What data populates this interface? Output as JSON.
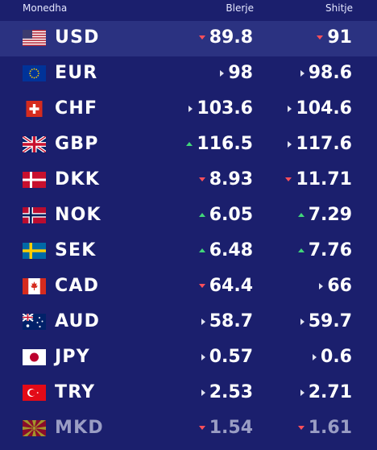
{
  "header": {
    "currency": "Monedha",
    "buy": "Blerje",
    "sell": "Shitje"
  },
  "colors": {
    "background": "#1b1f6d",
    "selected_row": "#2b3281",
    "down": "#ff4f5a",
    "up": "#41d67a"
  },
  "rows": [
    {
      "code": "USD",
      "flag": "us-flag-icon",
      "buy": "89.8",
      "buy_trend": "down",
      "sell": "91",
      "sell_trend": "down"
    },
    {
      "code": "EUR",
      "flag": "eu-flag-icon",
      "buy": "98",
      "buy_trend": "flat",
      "sell": "98.6",
      "sell_trend": "flat"
    },
    {
      "code": "CHF",
      "flag": "ch-flag-icon",
      "buy": "103.6",
      "buy_trend": "flat",
      "sell": "104.6",
      "sell_trend": "flat"
    },
    {
      "code": "GBP",
      "flag": "gb-flag-icon",
      "buy": "116.5",
      "buy_trend": "up",
      "sell": "117.6",
      "sell_trend": "flat"
    },
    {
      "code": "DKK",
      "flag": "dk-flag-icon",
      "buy": "8.93",
      "buy_trend": "down",
      "sell": "11.71",
      "sell_trend": "down"
    },
    {
      "code": "NOK",
      "flag": "no-flag-icon",
      "buy": "6.05",
      "buy_trend": "up",
      "sell": "7.29",
      "sell_trend": "up"
    },
    {
      "code": "SEK",
      "flag": "se-flag-icon",
      "buy": "6.48",
      "buy_trend": "up",
      "sell": "7.76",
      "sell_trend": "up"
    },
    {
      "code": "CAD",
      "flag": "ca-flag-icon",
      "buy": "64.4",
      "buy_trend": "down",
      "sell": "66",
      "sell_trend": "flat"
    },
    {
      "code": "AUD",
      "flag": "au-flag-icon",
      "buy": "58.7",
      "buy_trend": "flat",
      "sell": "59.7",
      "sell_trend": "flat"
    },
    {
      "code": "JPY",
      "flag": "jp-flag-icon",
      "buy": "0.57",
      "buy_trend": "flat",
      "sell": "0.6",
      "sell_trend": "flat"
    },
    {
      "code": "TRY",
      "flag": "tr-flag-icon",
      "buy": "2.53",
      "buy_trend": "flat",
      "sell": "2.71",
      "sell_trend": "flat"
    },
    {
      "code": "MKD",
      "flag": "mk-flag-icon",
      "buy": "1.54",
      "buy_trend": "down",
      "sell": "1.61",
      "sell_trend": "down"
    }
  ]
}
